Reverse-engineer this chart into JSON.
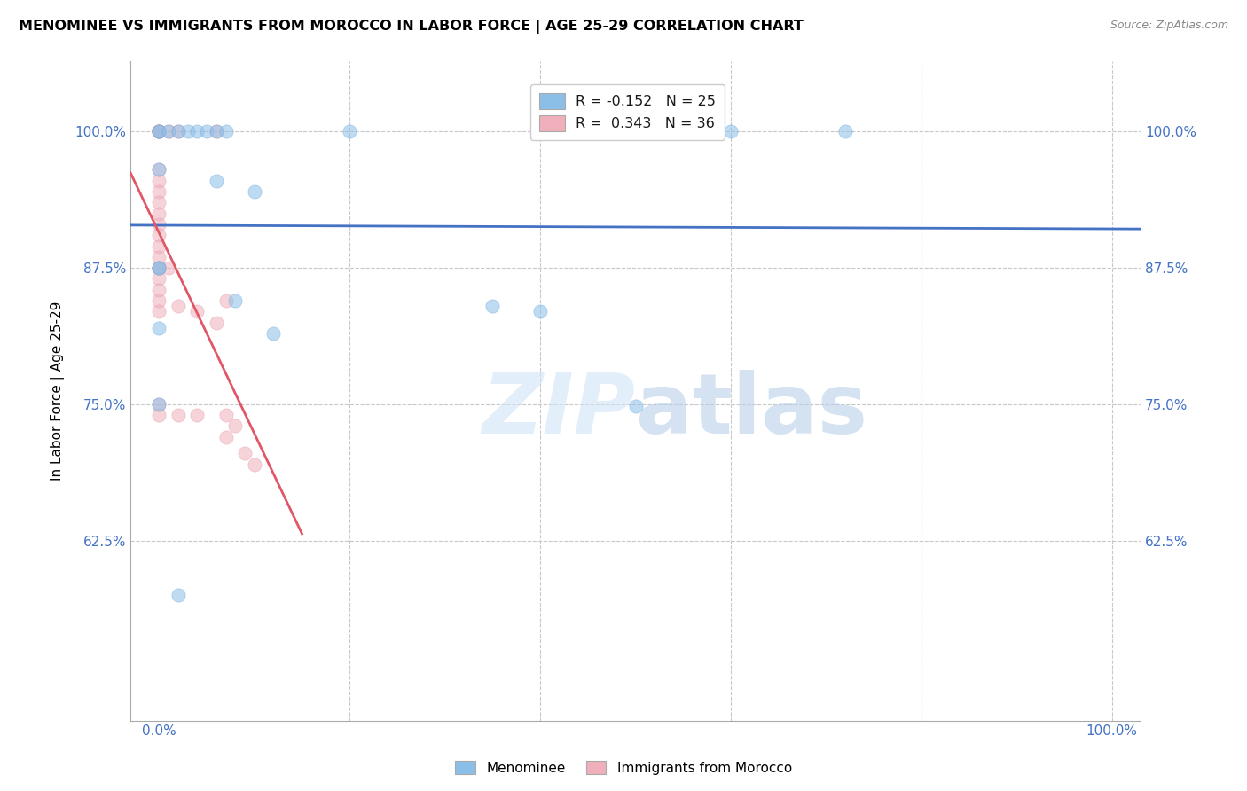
{
  "title": "MENOMINEE VS IMMIGRANTS FROM MOROCCO IN LABOR FORCE | AGE 25-29 CORRELATION CHART",
  "source": "Source: ZipAtlas.com",
  "ylabel": "In Labor Force | Age 25-29",
  "watermark_zip": "ZIP",
  "watermark_atlas": "atlas",
  "legend_r1": "R = -0.152",
  "legend_n1": "N = 25",
  "legend_r2": "R =  0.343",
  "legend_n2": "N = 36",
  "menominee_scatter": [
    [
      0.0,
      1.0
    ],
    [
      0.0,
      1.0
    ],
    [
      0.01,
      1.0
    ],
    [
      0.02,
      1.0
    ],
    [
      0.03,
      1.0
    ],
    [
      0.04,
      1.0
    ],
    [
      0.05,
      1.0
    ],
    [
      0.06,
      1.0
    ],
    [
      0.07,
      1.0
    ],
    [
      0.2,
      1.0
    ],
    [
      0.6,
      1.0
    ],
    [
      0.72,
      1.0
    ],
    [
      0.0,
      0.965
    ],
    [
      0.06,
      0.955
    ],
    [
      0.1,
      0.945
    ],
    [
      0.0,
      0.875
    ],
    [
      0.0,
      0.875
    ],
    [
      0.08,
      0.845
    ],
    [
      0.0,
      0.82
    ],
    [
      0.0,
      0.75
    ],
    [
      0.12,
      0.815
    ],
    [
      0.35,
      0.84
    ],
    [
      0.4,
      0.835
    ],
    [
      0.5,
      0.748
    ],
    [
      0.02,
      0.575
    ]
  ],
  "morocco_scatter": [
    [
      0.0,
      1.0
    ],
    [
      0.0,
      1.0
    ],
    [
      0.0,
      1.0
    ],
    [
      0.0,
      1.0
    ],
    [
      0.01,
      1.0
    ],
    [
      0.02,
      1.0
    ],
    [
      0.06,
      1.0
    ],
    [
      0.0,
      0.965
    ],
    [
      0.0,
      0.955
    ],
    [
      0.0,
      0.945
    ],
    [
      0.0,
      0.935
    ],
    [
      0.0,
      0.925
    ],
    [
      0.0,
      0.915
    ],
    [
      0.0,
      0.905
    ],
    [
      0.0,
      0.895
    ],
    [
      0.0,
      0.885
    ],
    [
      0.0,
      0.875
    ],
    [
      0.0,
      0.875
    ],
    [
      0.01,
      0.875
    ],
    [
      0.0,
      0.865
    ],
    [
      0.0,
      0.855
    ],
    [
      0.0,
      0.845
    ],
    [
      0.0,
      0.835
    ],
    [
      0.02,
      0.84
    ],
    [
      0.04,
      0.835
    ],
    [
      0.0,
      0.75
    ],
    [
      0.0,
      0.74
    ],
    [
      0.02,
      0.74
    ],
    [
      0.04,
      0.74
    ],
    [
      0.07,
      0.845
    ],
    [
      0.06,
      0.825
    ],
    [
      0.07,
      0.74
    ],
    [
      0.08,
      0.73
    ],
    [
      0.07,
      0.72
    ],
    [
      0.09,
      0.705
    ],
    [
      0.1,
      0.695
    ]
  ],
  "menominee_color": "#8bbfe8",
  "morocco_color": "#f0b0bb",
  "menominee_edge": "#6aabdf",
  "morocco_edge": "#e898a8",
  "menominee_line_color": "#4472c4",
  "morocco_line_color": "#e05868",
  "scatter_size": 120,
  "scatter_alpha": 0.55,
  "background_color": "#ffffff",
  "grid_color": "#c8c8c8",
  "axis_color": "#4472c4",
  "title_fontsize": 11.5,
  "label_fontsize": 11,
  "tick_fontsize": 11,
  "xlim": [
    -0.03,
    1.03
  ],
  "ylim": [
    0.46,
    1.065
  ]
}
